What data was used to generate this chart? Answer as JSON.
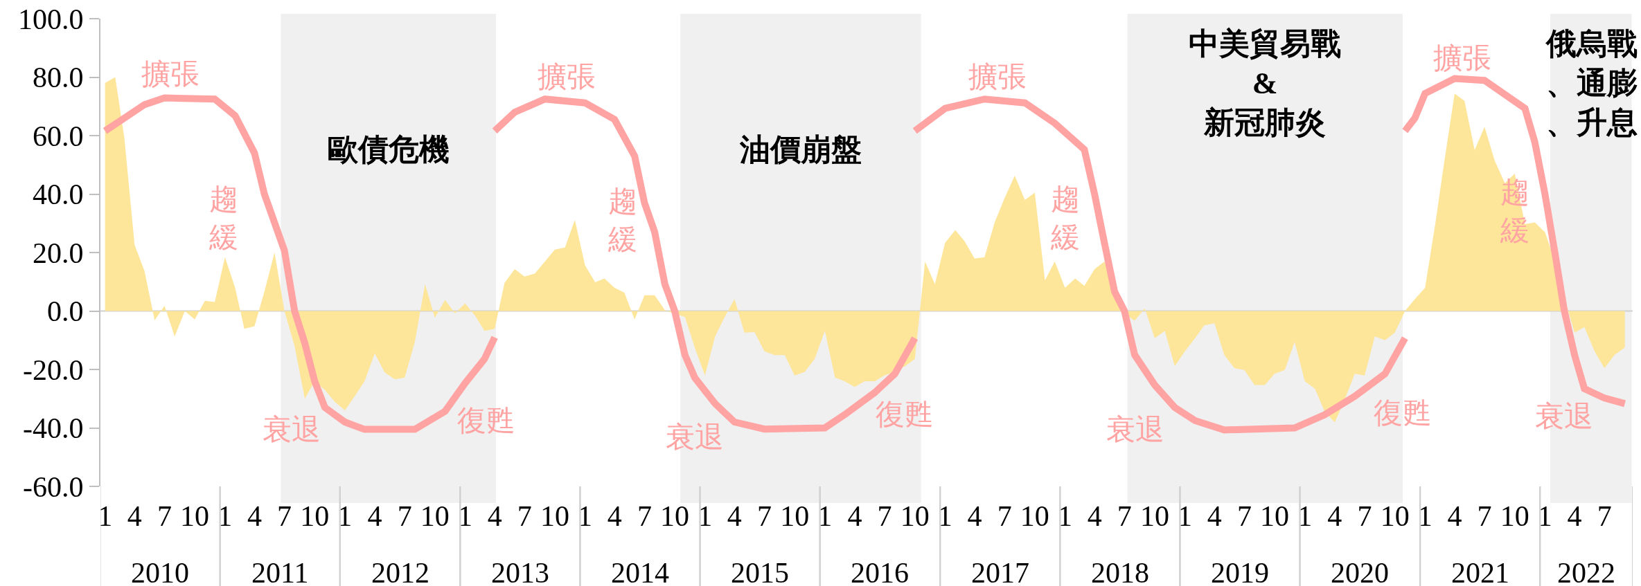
{
  "chart_data": {
    "type": "area",
    "x": [
      "2010-01",
      "2010-02",
      "2010-03",
      "2010-04",
      "2010-05",
      "2010-06",
      "2010-07",
      "2010-08",
      "2010-09",
      "2010-10",
      "2010-11",
      "2010-12",
      "2011-01",
      "2011-02",
      "2011-03",
      "2011-04",
      "2011-05",
      "2011-06",
      "2011-07",
      "2011-08",
      "2011-09",
      "2011-10",
      "2011-11",
      "2011-12",
      "2012-01",
      "2012-02",
      "2012-03",
      "2012-04",
      "2012-05",
      "2012-06",
      "2012-07",
      "2012-08",
      "2012-09",
      "2012-10",
      "2012-11",
      "2012-12",
      "2013-01",
      "2013-02",
      "2013-03",
      "2013-04",
      "2013-05",
      "2013-06",
      "2013-07",
      "2013-08",
      "2013-09",
      "2013-10",
      "2013-11",
      "2013-12",
      "2014-01",
      "2014-02",
      "2014-03",
      "2014-04",
      "2014-05",
      "2014-06",
      "2014-07",
      "2014-08",
      "2014-09",
      "2014-10",
      "2014-11",
      "2014-12",
      "2015-01",
      "2015-02",
      "2015-03",
      "2015-04",
      "2015-05",
      "2015-06",
      "2015-07",
      "2015-08",
      "2015-09",
      "2015-10",
      "2015-11",
      "2015-12",
      "2016-01",
      "2016-02",
      "2016-03",
      "2016-04",
      "2016-05",
      "2016-06",
      "2016-07",
      "2016-08",
      "2016-09",
      "2016-10",
      "2016-11",
      "2016-12",
      "2017-01",
      "2017-02",
      "2017-03",
      "2017-04",
      "2017-05",
      "2017-06",
      "2017-07",
      "2017-08",
      "2017-09",
      "2017-10",
      "2017-11",
      "2017-12",
      "2018-01",
      "2018-02",
      "2018-03",
      "2018-04",
      "2018-05",
      "2018-06",
      "2018-07",
      "2018-08",
      "2018-09",
      "2018-10",
      "2018-11",
      "2018-12",
      "2019-01",
      "2019-02",
      "2019-03",
      "2019-04",
      "2019-05",
      "2019-06",
      "2019-07",
      "2019-08",
      "2019-09",
      "2019-10",
      "2019-11",
      "2019-12",
      "2020-01",
      "2020-02",
      "2020-03",
      "2020-04",
      "2020-05",
      "2020-06",
      "2020-07",
      "2020-08",
      "2020-09",
      "2020-10",
      "2020-11",
      "2020-12",
      "2021-01",
      "2021-02",
      "2021-03",
      "2021-04",
      "2021-05",
      "2021-06",
      "2021-07",
      "2021-08",
      "2021-09",
      "2021-10",
      "2021-11",
      "2021-12",
      "2022-01",
      "2022-02",
      "2022-03",
      "2022-04",
      "2022-05",
      "2022-06",
      "2022-07",
      "2022-08",
      "2022-09"
    ],
    "series": [
      {
        "color": "#fde59a",
        "values": [
          78,
          80,
          59,
          22.6,
          13.7,
          -3.2,
          1.8,
          -8.7,
          0,
          -2.9,
          3.5,
          3.1,
          18.4,
          7.9,
          -6.1,
          -5.2,
          6.6,
          20,
          0,
          -12,
          -30,
          -24,
          -27,
          -31,
          -34,
          -29,
          -24,
          -14.5,
          -21,
          -23.4,
          -22.8,
          -10.6,
          9.2,
          -2.3,
          3.8,
          -0.8,
          2.6,
          -1.7,
          -6.8,
          -6.1,
          9.6,
          14.3,
          11.8,
          12.8,
          16.9,
          21,
          21.7,
          31.2,
          15.6,
          9.8,
          11.1,
          7.9,
          6.3,
          -2.9,
          5.4,
          5.4,
          0.3,
          -1,
          -2,
          -12.5,
          -22.1,
          -8.7,
          -2.3,
          4.1,
          -7.4,
          -7.2,
          -13.8,
          -15.1,
          -15.1,
          -22.1,
          -20.8,
          -16.4,
          -6.8,
          -22.8,
          -24,
          -26,
          -24,
          -24,
          -22,
          -20.8,
          -18.9,
          -16.4,
          16.9,
          9.2,
          23.3,
          27.7,
          23.9,
          17.9,
          18.4,
          30.3,
          38.6,
          46.3,
          38,
          40.5,
          10.5,
          16.9,
          7.9,
          11.1,
          8.6,
          14.3,
          16.9,
          7.9,
          -1,
          -3.3,
          0.9,
          -9.3,
          -6.8,
          -18.9,
          -13.8,
          -9.3,
          -4.9,
          -4.2,
          -15.1,
          -19.6,
          -20.2,
          -25.3,
          -25.3,
          -21.5,
          -20.2,
          -10.6,
          -24,
          -26.6,
          -34.3,
          -38.1,
          -30.4,
          -21.5,
          -22.1,
          -8.7,
          -10,
          -7.4,
          0,
          4.1,
          7.9,
          29.7,
          51.4,
          74.4,
          71.9,
          55,
          63,
          51.4,
          43.7,
          47,
          29.7,
          30.3,
          27,
          16.9,
          4.7,
          -7.4,
          -5.5,
          -13.8,
          -19.6,
          -15,
          -12.5
        ]
      },
      {
        "type": "line",
        "color": "#ffa3a3",
        "x": [
          "2010-01",
          "2010-03",
          "2010-05",
          "2010-07",
          "2010-12",
          "2011-02",
          "2011-04",
          "2011-05",
          "2011-07",
          "2011-08",
          "2011-09",
          "2011-10",
          "2011-11",
          "2012-01",
          "2012-03",
          "2012-08",
          "2012-11",
          "2013-01",
          "2013-03",
          "2013-04"
        ],
        "values": [
          61.6,
          66,
          70.6,
          72.9,
          72.5,
          66.8,
          54,
          40,
          20.7,
          0,
          -11,
          -24,
          -33,
          -38,
          -40.5,
          -40.5,
          -34.3,
          -24.7,
          -16.4,
          -9
        ]
      },
      {
        "type": "line",
        "color": "#ffa3a3",
        "x": [
          "2013-04",
          "2013-06",
          "2013-09",
          "2014-01",
          "2014-04",
          "2014-06",
          "2014-07",
          "2014-08",
          "2014-09",
          "2014-10",
          "2014-11",
          "2014-12",
          "2015-02",
          "2015-04",
          "2015-07",
          "2016-01",
          "2016-03",
          "2016-06",
          "2016-08",
          "2016-10"
        ],
        "values": [
          61.6,
          68,
          72.5,
          71.2,
          65.5,
          53,
          37,
          27,
          9.2,
          0,
          -15,
          -22.8,
          -31.7,
          -38,
          -40.4,
          -40,
          -35.5,
          -27.9,
          -21.5,
          -9.3
        ]
      },
      {
        "type": "line",
        "color": "#ffa3a3",
        "x": [
          "2016-10",
          "2017-01",
          "2017-05",
          "2017-09",
          "2017-12",
          "2018-03",
          "2018-04",
          "2018-05",
          "2018-06",
          "2018-07",
          "2018-08",
          "2018-10",
          "2018-12",
          "2019-02",
          "2019-05",
          "2019-12",
          "2020-03",
          "2020-06",
          "2020-09",
          "2020-11"
        ],
        "values": [
          61.6,
          69.3,
          72.5,
          71.2,
          64.2,
          55.2,
          40,
          23.3,
          6.6,
          0,
          -15,
          -25.3,
          -33,
          -37.5,
          -40.7,
          -40,
          -35.5,
          -29.2,
          -21.5,
          -9.3
        ]
      },
      {
        "type": "line",
        "color": "#ffa3a3",
        "x": [
          "2020-11",
          "2020-12",
          "2021-01",
          "2021-04",
          "2021-07",
          "2021-11",
          "2021-12",
          "2022-01",
          "2022-02",
          "2022-03",
          "2022-04",
          "2022-05",
          "2022-07",
          "2022-09"
        ],
        "values": [
          61.6,
          66,
          74.4,
          79.5,
          78.9,
          69.3,
          57.8,
          40,
          19.4,
          0,
          -15,
          -26.6,
          -29.8,
          -31.7
        ]
      }
    ],
    "bands": [
      {
        "axis": "x",
        "from": "2011-06-20",
        "to": "2013-04-05",
        "label": "歐債危機",
        "color": "#f0f0f0"
      },
      {
        "axis": "x",
        "from": "2014-10-18",
        "to": "2016-10-20",
        "label": "油價崩盤",
        "color": "#f0f0f0"
      },
      {
        "axis": "x",
        "from": "2018-07-10",
        "to": "2020-10-25",
        "label": "中美貿易戰\n&\n新冠肺炎",
        "color": "#f0f0f0"
      },
      {
        "axis": "x",
        "from": "2022-01-17",
        "to": "2022-09-22",
        "label": "俄烏戰、通膨、升息",
        "color": "#f0f0f0"
      }
    ],
    "annotations": [
      "擴張",
      "趨緩",
      "衰退",
      "復甦",
      "擴張",
      "趨緩",
      "衰退",
      "復甦",
      "擴張",
      "趨緩",
      "衰退",
      "復甦",
      "擴張",
      "趨緩",
      "衰退",
      "2010",
      "2011",
      "2012",
      "2013",
      "2014",
      "2015",
      "2016",
      "2017",
      "2018",
      "2019",
      "2020",
      "2021",
      "2022"
    ],
    "ref_lines": [
      {
        "axis": "y",
        "value": 0,
        "color": "#d0d0d0"
      }
    ],
    "xlim": [
      "2009-12-18",
      "2022-09-25"
    ],
    "xticks": [
      {
        "value": "2010-01",
        "label": "1"
      },
      {
        "value": "2010-04",
        "label": "4"
      },
      {
        "value": "2010-07",
        "label": "7"
      },
      {
        "value": "2010-10",
        "label": "10"
      },
      {
        "value": "2011-01",
        "label": "1"
      },
      {
        "value": "2011-04",
        "label": "4"
      },
      {
        "value": "2011-07",
        "label": "7"
      },
      {
        "value": "2011-10",
        "label": "10"
      },
      {
        "value": "2012-01",
        "label": "1"
      },
      {
        "value": "2012-04",
        "label": "4"
      },
      {
        "value": "2012-07",
        "label": "7"
      },
      {
        "value": "2012-10",
        "label": "10"
      },
      {
        "value": "2013-01",
        "label": "1"
      },
      {
        "value": "2013-04",
        "label": "4"
      },
      {
        "value": "2013-07",
        "label": "7"
      },
      {
        "value": "2013-10",
        "label": "10"
      },
      {
        "value": "2014-01",
        "label": "1"
      },
      {
        "value": "2014-04",
        "label": "4"
      },
      {
        "value": "2014-07",
        "label": "7"
      },
      {
        "value": "2014-10",
        "label": "10"
      },
      {
        "value": "2015-01",
        "label": "1"
      },
      {
        "value": "2015-04",
        "label": "4"
      },
      {
        "value": "2015-07",
        "label": "7"
      },
      {
        "value": "2015-10",
        "label": "10"
      },
      {
        "value": "2016-01",
        "label": "1"
      },
      {
        "value": "2016-04",
        "label": "4"
      },
      {
        "value": "2016-07",
        "label": "7"
      },
      {
        "value": "2016-10",
        "label": "10"
      },
      {
        "value": "2017-01",
        "label": "1"
      },
      {
        "value": "2017-04",
        "label": "4"
      },
      {
        "value": "2017-07",
        "label": "7"
      },
      {
        "value": "2017-10",
        "label": "10"
      },
      {
        "value": "2018-01",
        "label": "1"
      },
      {
        "value": "2018-04",
        "label": "4"
      },
      {
        "value": "2018-07",
        "label": "7"
      },
      {
        "value": "2018-10",
        "label": "10"
      },
      {
        "value": "2019-01",
        "label": "1"
      },
      {
        "value": "2019-04",
        "label": "4"
      },
      {
        "value": "2019-07",
        "label": "7"
      },
      {
        "value": "2019-10",
        "label": "10"
      },
      {
        "value": "2020-01",
        "label": "1"
      },
      {
        "value": "2020-04",
        "label": "4"
      },
      {
        "value": "2020-07",
        "label": "7"
      },
      {
        "value": "2020-10",
        "label": "10"
      },
      {
        "value": "2021-01",
        "label": "1"
      },
      {
        "value": "2021-04",
        "label": "4"
      },
      {
        "value": "2021-07",
        "label": "7"
      },
      {
        "value": "2021-10",
        "label": "10"
      },
      {
        "value": "2022-01",
        "label": "1"
      },
      {
        "value": "2022-04",
        "label": "4"
      },
      {
        "value": "2022-07",
        "label": "7"
      }
    ],
    "ylim": [
      -60,
      100
    ],
    "yticks": [
      {
        "value": -60,
        "label": "-60.0"
      },
      {
        "value": -40,
        "label": "-40.0"
      },
      {
        "value": -20,
        "label": "-20.0"
      },
      {
        "value": 0,
        "label": "0.0"
      },
      {
        "value": 20,
        "label": "20.0"
      },
      {
        "value": 40,
        "label": "40.0"
      },
      {
        "value": 60,
        "label": "60.0"
      },
      {
        "value": 80,
        "label": "80.0"
      },
      {
        "value": 100,
        "label": "100.0"
      }
    ],
    "grid": false
  }
}
